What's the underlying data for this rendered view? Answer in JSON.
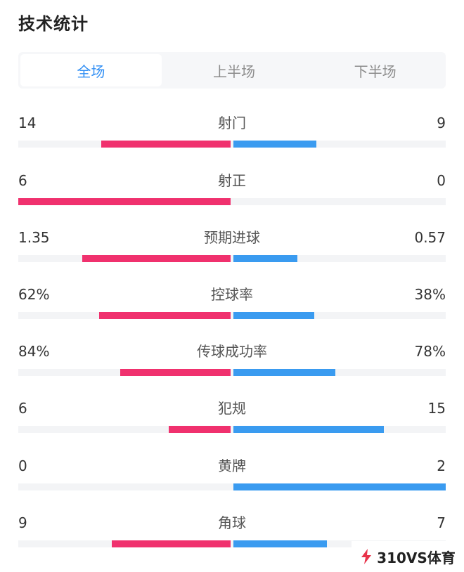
{
  "title": "技术统计",
  "tabs": [
    {
      "label": "全场",
      "active": true
    },
    {
      "label": "上半场",
      "active": false
    },
    {
      "label": "下半场",
      "active": false
    }
  ],
  "colors": {
    "home": "#f0316e",
    "away": "#3a9bf0",
    "tab_active": "#2f8ef4"
  },
  "stats": [
    {
      "label": "射门",
      "home": "14",
      "away": "9",
      "home_share": 0.61,
      "away_share": 0.39
    },
    {
      "label": "射正",
      "home": "6",
      "away": "0",
      "home_share": 1.0,
      "away_share": 0.0
    },
    {
      "label": "预期进球",
      "home": "1.35",
      "away": "0.57",
      "home_share": 0.7,
      "away_share": 0.3
    },
    {
      "label": "控球率",
      "home": "62%",
      "away": "38%",
      "home_share": 0.62,
      "away_share": 0.38
    },
    {
      "label": "传球成功率",
      "home": "84%",
      "away": "78%",
      "home_share": 0.52,
      "away_share": 0.48
    },
    {
      "label": "犯规",
      "home": "6",
      "away": "15",
      "home_share": 0.29,
      "away_share": 0.71
    },
    {
      "label": "黄牌",
      "home": "0",
      "away": "2",
      "home_share": 0.0,
      "away_share": 1.0
    },
    {
      "label": "角球",
      "home": "9",
      "away": "7",
      "home_share": 0.56,
      "away_share": 0.44
    }
  ],
  "watermark": {
    "text": "310VS体育",
    "icon": "310vs-logo-icon"
  }
}
